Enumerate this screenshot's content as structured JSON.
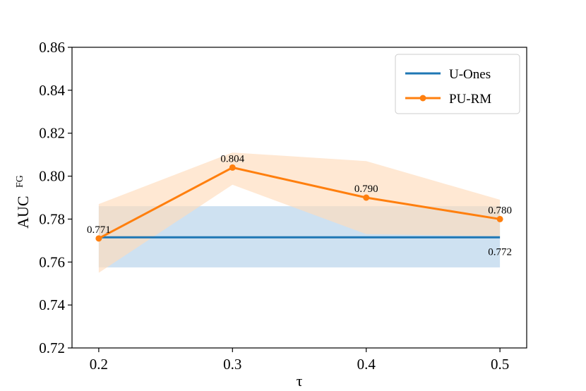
{
  "chart_data": {
    "type": "line",
    "xlabel": "τ",
    "ylabel": "AUC",
    "ylabel_superscript": "FG",
    "x": [
      0.2,
      0.3,
      0.4,
      0.5
    ],
    "x_tick_labels": [
      "0.2",
      "0.3",
      "0.4",
      "0.5"
    ],
    "xlim": [
      0.18,
      0.52
    ],
    "ylim": [
      0.72,
      0.86
    ],
    "y_ticks": [
      0.72,
      0.74,
      0.76,
      0.78,
      0.8,
      0.82,
      0.84,
      0.86
    ],
    "y_tick_labels": [
      "0.72",
      "0.74",
      "0.76",
      "0.78",
      "0.80",
      "0.82",
      "0.84",
      "0.86"
    ],
    "grid": false,
    "legend_position": "top-right",
    "series": [
      {
        "name": "U-Ones",
        "color": "#1f77b4",
        "marker": false,
        "values": [
          0.7715,
          0.7715,
          0.7715,
          0.7715
        ],
        "band_lower": [
          0.7575,
          0.7575,
          0.7575,
          0.7575
        ],
        "band_upper": [
          0.786,
          0.786,
          0.786,
          0.786
        ],
        "band_color": "#c5dcee",
        "annotations": [
          {
            "index": 3,
            "text": "0.772",
            "placement": "below"
          }
        ]
      },
      {
        "name": "PU-RM",
        "color": "#ff7f0e",
        "marker": true,
        "values": [
          0.771,
          0.804,
          0.79,
          0.78
        ],
        "band_lower": [
          0.755,
          0.796,
          0.773,
          0.772
        ],
        "band_upper": [
          0.787,
          0.811,
          0.807,
          0.789
        ],
        "band_color": "#ffdbbc",
        "annotations": [
          {
            "index": 0,
            "text": "0.771",
            "placement": "above"
          },
          {
            "index": 1,
            "text": "0.804",
            "placement": "above"
          },
          {
            "index": 2,
            "text": "0.790",
            "placement": "above"
          },
          {
            "index": 3,
            "text": "0.780",
            "placement": "above"
          }
        ]
      }
    ]
  }
}
